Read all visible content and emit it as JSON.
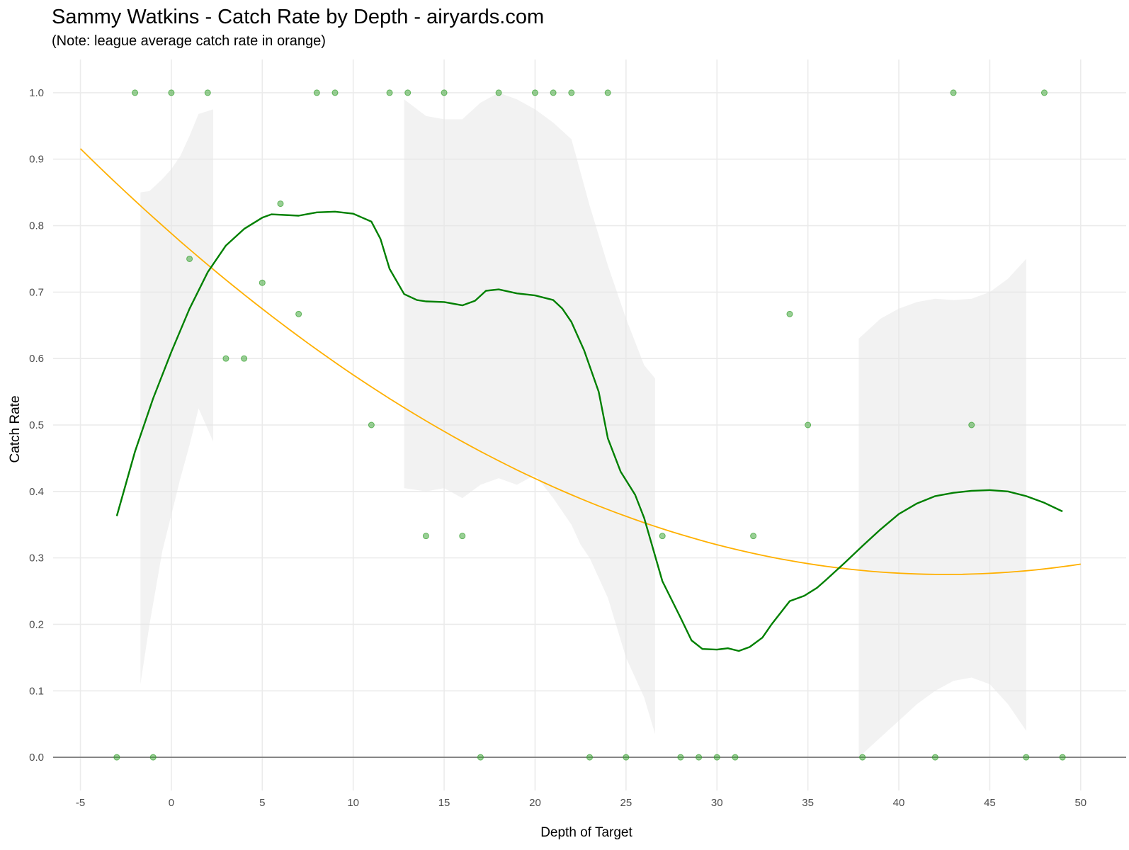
{
  "title": "Sammy Watkins - Catch Rate by Depth - airyards.com",
  "subtitle": "(Note: league average catch rate in orange)",
  "colors": {
    "points": "#33a02c",
    "smooth": "#008000",
    "league": "#ffb000",
    "ribbon": "#e6e6e6",
    "hline": "#808080"
  },
  "chart_data": {
    "type": "scatter",
    "xlabel": "Depth of Target",
    "ylabel": "Catch Rate",
    "xlim": [
      -6.5,
      52.5
    ],
    "ylim": [
      -0.05,
      1.05
    ],
    "x_ticks": [
      -5,
      0,
      5,
      10,
      15,
      20,
      25,
      30,
      35,
      40,
      45,
      50
    ],
    "x_tick_labels": [
      "-5",
      "0",
      "5",
      "10",
      "15",
      "20",
      "25",
      "30",
      "35",
      "40",
      "45",
      "50"
    ],
    "y_ticks": [
      0,
      0.1,
      0.2,
      0.3,
      0.4,
      0.5,
      0.6,
      0.7,
      0.8,
      0.9,
      1.0
    ],
    "y_tick_labels": [
      "0.0",
      "0.1",
      "0.2",
      "0.3",
      "0.4",
      "0.5",
      "0.6",
      "0.7",
      "0.8",
      "0.9",
      "1.0"
    ],
    "grid": true,
    "hline_y": 0,
    "points": [
      {
        "x": -2,
        "y": 1.0
      },
      {
        "x": 0,
        "y": 1.0
      },
      {
        "x": 2,
        "y": 1.0
      },
      {
        "x": 8,
        "y": 1.0
      },
      {
        "x": 9,
        "y": 1.0
      },
      {
        "x": 12,
        "y": 1.0
      },
      {
        "x": 13,
        "y": 1.0
      },
      {
        "x": 15,
        "y": 1.0
      },
      {
        "x": 18,
        "y": 1.0
      },
      {
        "x": 20,
        "y": 1.0
      },
      {
        "x": 21,
        "y": 1.0
      },
      {
        "x": 22,
        "y": 1.0
      },
      {
        "x": 24,
        "y": 1.0
      },
      {
        "x": 43,
        "y": 1.0
      },
      {
        "x": 48,
        "y": 1.0
      },
      {
        "x": 6,
        "y": 0.833
      },
      {
        "x": 1,
        "y": 0.75
      },
      {
        "x": 5,
        "y": 0.714
      },
      {
        "x": 7,
        "y": 0.667
      },
      {
        "x": 3,
        "y": 0.6
      },
      {
        "x": 4,
        "y": 0.6
      },
      {
        "x": 11,
        "y": 0.5
      },
      {
        "x": 34,
        "y": 0.667
      },
      {
        "x": 35,
        "y": 0.5
      },
      {
        "x": 44,
        "y": 0.5
      },
      {
        "x": 14,
        "y": 0.333
      },
      {
        "x": 16,
        "y": 0.333
      },
      {
        "x": 27,
        "y": 0.333
      },
      {
        "x": 32,
        "y": 0.333
      },
      {
        "x": -3,
        "y": 0
      },
      {
        "x": -1,
        "y": 0
      },
      {
        "x": 17,
        "y": 0
      },
      {
        "x": 23,
        "y": 0
      },
      {
        "x": 25,
        "y": 0
      },
      {
        "x": 28,
        "y": 0
      },
      {
        "x": 29,
        "y": 0
      },
      {
        "x": 30,
        "y": 0
      },
      {
        "x": 31,
        "y": 0
      },
      {
        "x": 38,
        "y": 0
      },
      {
        "x": 42,
        "y": 0
      },
      {
        "x": 47,
        "y": 0
      },
      {
        "x": 49,
        "y": 0
      }
    ],
    "smooth_line": {
      "x": [
        -3,
        -2,
        -1,
        0,
        1,
        2,
        3,
        4,
        5,
        5.5,
        7,
        8,
        9,
        10,
        11,
        11.5,
        12,
        12.8,
        13.5,
        14,
        15,
        16,
        16.7,
        17.3,
        18,
        19,
        20,
        21,
        21.5,
        22,
        22.7,
        23.5,
        24,
        24.7,
        25.5,
        26,
        27,
        28,
        28.6,
        29.2,
        30,
        30.6,
        31.2,
        31.8,
        32.5,
        33,
        34,
        34.8,
        35.5,
        36,
        37,
        38,
        39,
        40,
        41,
        42,
        43,
        44,
        45,
        46,
        47,
        48,
        49
      ],
      "y": [
        0.363,
        0.46,
        0.54,
        0.61,
        0.675,
        0.73,
        0.77,
        0.795,
        0.812,
        0.817,
        0.815,
        0.82,
        0.821,
        0.818,
        0.806,
        0.78,
        0.735,
        0.697,
        0.688,
        0.686,
        0.685,
        0.68,
        0.687,
        0.702,
        0.704,
        0.698,
        0.695,
        0.688,
        0.675,
        0.655,
        0.612,
        0.55,
        0.48,
        0.43,
        0.395,
        0.36,
        0.265,
        0.21,
        0.176,
        0.163,
        0.162,
        0.164,
        0.16,
        0.166,
        0.18,
        0.2,
        0.235,
        0.243,
        0.255,
        0.267,
        0.292,
        0.318,
        0.343,
        0.366,
        0.382,
        0.393,
        0.398,
        0.401,
        0.402,
        0.4,
        0.393,
        0.383,
        0.37
      ]
    },
    "smooth_ribbon": [
      {
        "x": [
          -1.7,
          -1.2,
          -0.5,
          0,
          0.5,
          1,
          1.5,
          2.3
        ],
        "upper": [
          0.85,
          0.852,
          0.87,
          0.885,
          0.905,
          0.935,
          0.968,
          0.975
        ],
        "lower": [
          0.11,
          0.2,
          0.31,
          0.365,
          0.42,
          0.47,
          0.525,
          0.475
        ]
      },
      {
        "x": [
          12.8,
          14,
          15,
          16,
          17,
          18,
          19,
          20,
          21,
          22,
          22.5,
          23,
          24,
          25,
          26,
          26.6
        ],
        "upper": [
          0.99,
          0.965,
          0.96,
          0.96,
          0.985,
          1.0,
          0.99,
          0.975,
          0.955,
          0.93,
          0.88,
          0.83,
          0.74,
          0.66,
          0.59,
          0.57
        ],
        "lower": [
          0.405,
          0.4,
          0.405,
          0.39,
          0.41,
          0.42,
          0.41,
          0.425,
          0.39,
          0.35,
          0.32,
          0.3,
          0.24,
          0.15,
          0.09,
          0.035
        ]
      },
      {
        "x": [
          37.8,
          39,
          40,
          41,
          42,
          43,
          44,
          45,
          46,
          47
        ],
        "upper": [
          0.63,
          0.66,
          0.675,
          0.685,
          0.69,
          0.688,
          0.69,
          0.7,
          0.72,
          0.75
        ],
        "lower": [
          0.0,
          0.03,
          0.055,
          0.08,
          0.1,
          0.115,
          0.12,
          0.11,
          0.08,
          0.04
        ]
      }
    ],
    "league_curve": {
      "a": 0.7882,
      "b": -0.0241,
      "c": 0.000283,
      "x_range": [
        -5,
        50
      ]
    }
  }
}
